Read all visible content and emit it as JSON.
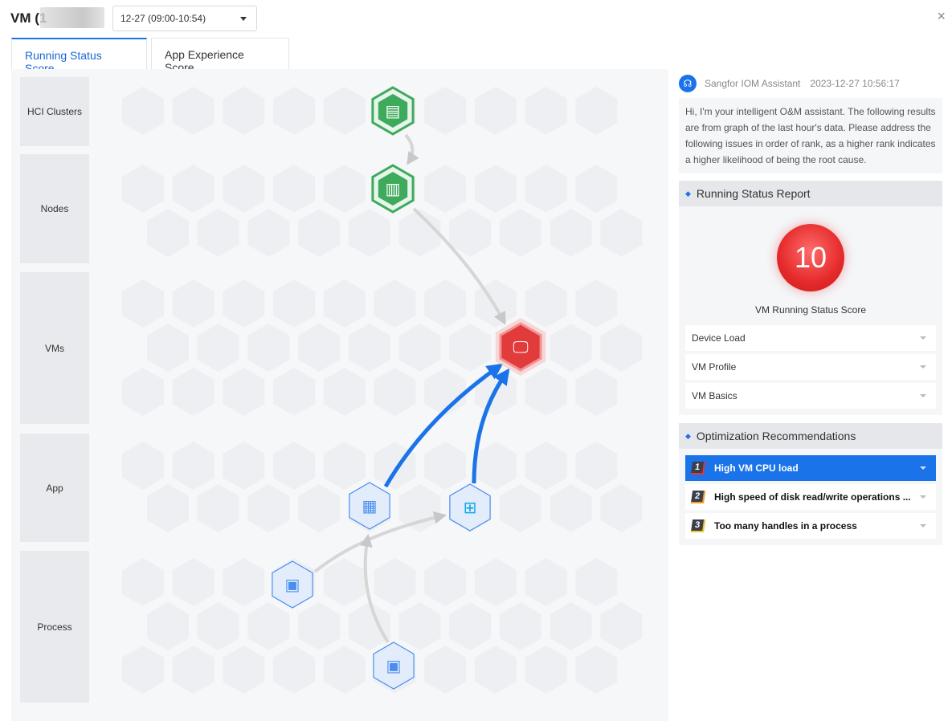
{
  "header": {
    "title": "VM (1",
    "time_range": "12-27 (09:00-10:54)",
    "close": "×"
  },
  "tabs": [
    {
      "label": "Running Status Score",
      "active": true
    },
    {
      "label": "App Experience Score",
      "active": false
    }
  ],
  "lanes": [
    {
      "label": "HCI Clusters"
    },
    {
      "label": "Nodes"
    },
    {
      "label": "VMs"
    },
    {
      "label": "App"
    },
    {
      "label": "Process"
    }
  ],
  "graph": {
    "nodes": [
      {
        "id": "hci-cluster",
        "lane": "HCI Clusters",
        "status": "healthy",
        "color": "#3daa5c",
        "icon": "cluster-icon"
      },
      {
        "id": "node",
        "lane": "Nodes",
        "status": "healthy",
        "color": "#3daa5c",
        "icon": "server-icon"
      },
      {
        "id": "vm",
        "lane": "VMs",
        "status": "critical",
        "color": "#e23b3b",
        "icon": "monitor-icon"
      },
      {
        "id": "app-1",
        "lane": "App",
        "status": "normal",
        "color": "#4a8ef0",
        "icon": "app-grid-icon"
      },
      {
        "id": "app-windows",
        "lane": "App",
        "status": "normal",
        "color": "#4a8ef0",
        "icon": "windows-icon"
      },
      {
        "id": "process-1",
        "lane": "Process",
        "status": "normal",
        "color": "#4a8ef0",
        "icon": "process-icon"
      },
      {
        "id": "process-2",
        "lane": "Process",
        "status": "normal",
        "color": "#4a8ef0",
        "icon": "process-icon"
      }
    ],
    "edges": [
      {
        "from": "hci-cluster",
        "to": "node",
        "style": "gray"
      },
      {
        "from": "node",
        "to": "vm",
        "style": "gray"
      },
      {
        "from": "app-1",
        "to": "vm",
        "style": "blue"
      },
      {
        "from": "app-windows",
        "to": "vm",
        "style": "blue"
      },
      {
        "from": "process-1",
        "to": "app-windows",
        "style": "gray"
      },
      {
        "from": "process-2",
        "to": "app-1",
        "style": "gray"
      }
    ]
  },
  "assistant": {
    "name": "Sangfor IOM Assistant",
    "timestamp": "2023-12-27 10:56:17",
    "message": "Hi, I'm your intelligent O&M assistant. The following results are from graph of the last hour's data. Please address the following issues in order of rank, as a higher rank indicates a higher likelihood of being the root cause."
  },
  "report": {
    "title": "Running Status Report",
    "score": "10",
    "score_label": "VM Running Status Score",
    "items": [
      "Device Load",
      "VM Profile",
      "VM Basics"
    ]
  },
  "recommendations": {
    "title": "Optimization Recommendations",
    "items": [
      {
        "rank": "1",
        "label": "High VM CPU load",
        "selected": true,
        "rank_color": "#e33"
      },
      {
        "rank": "2",
        "label": "High speed of disk read/write operations ...",
        "selected": false,
        "rank_color": "#f59a23"
      },
      {
        "rank": "3",
        "label": "Too many handles in a process",
        "selected": false,
        "rank_color": "#f5c823"
      }
    ]
  }
}
